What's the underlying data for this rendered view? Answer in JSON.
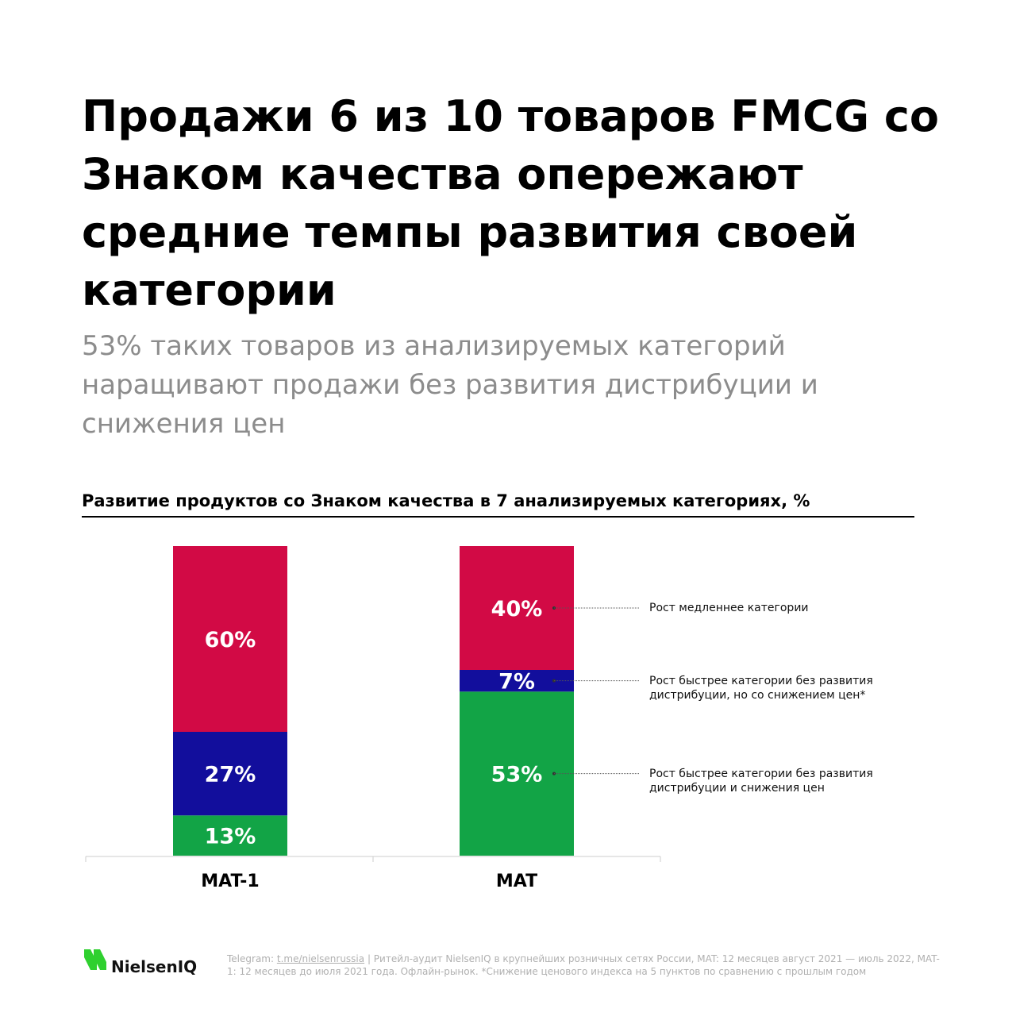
{
  "headline": "Продажи 6 из 10 товаров FMCG со Знаком качества опережают средние темпы развития своей категории",
  "subheadline": "53% таких товаров из анализируемых категорий наращивают продажи без развития дистрибуции и снижения цен",
  "chart_data": {
    "type": "stacked_bar",
    "title": "Развитие продуктов со Знаком качества в 7 анализируемых категориях, %",
    "categories": [
      "MAT-1",
      "MAT"
    ],
    "ylim": [
      0,
      100
    ],
    "series": [
      {
        "name": "Рост быстрее категории без развития дистрибуции и снижения цен",
        "color": "#12a446",
        "values": [
          13,
          53
        ],
        "value_labels": [
          "13%",
          "53%"
        ]
      },
      {
        "name": "Рост быстрее категории без развития дистрибуции, но со снижением цен*",
        "color": "#120e9c",
        "values": [
          27,
          7
        ],
        "value_labels": [
          "27%",
          "7%"
        ]
      },
      {
        "name": "Рост медленнее категории",
        "color": "#d20a45",
        "values": [
          60,
          40
        ],
        "value_labels": [
          "60%",
          "40%"
        ]
      }
    ]
  },
  "footer": {
    "logo": "NielsenIQ",
    "telegram_label": "Telegram:",
    "telegram_link": "t.me/nielsenrussia",
    "text": "| Ритейл-аудит NielsenIQ в крупнейших розничных сетях России, MAT: 12 месяцев август 2021 — июль 2022, MAT-1: 12 месяцев до июля 2021 года. Офлайн-рынок. *Снижение ценового индекса на 5 пунктов по сравнению с прошлым годом"
  }
}
